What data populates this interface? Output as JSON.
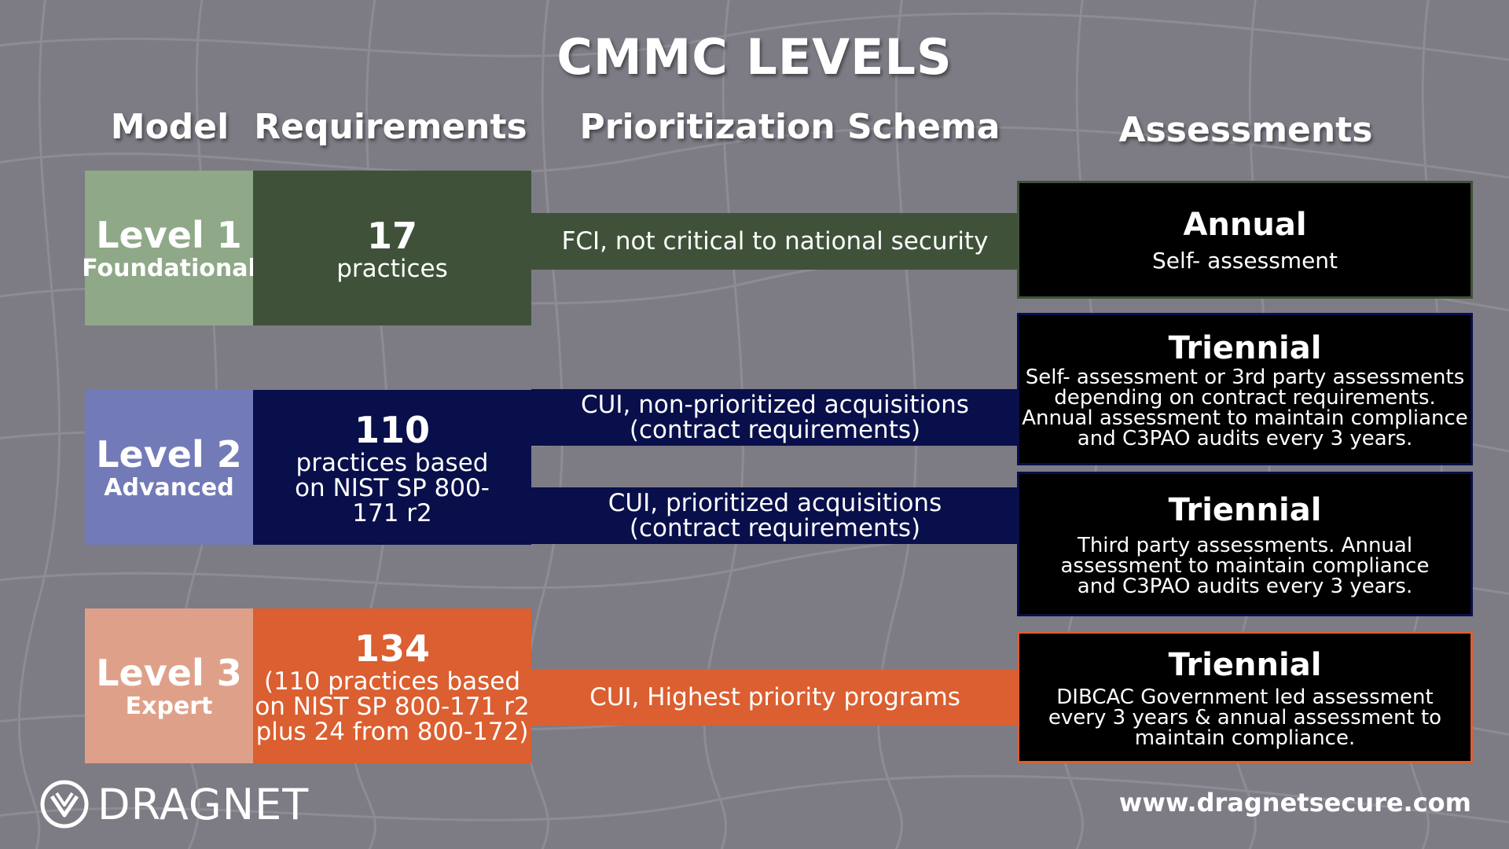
{
  "title": "CMMC LEVELS",
  "columns": {
    "model": "Model",
    "requirements": "Requirements",
    "schema": "Prioritization Schema",
    "assessments": "Assessments"
  },
  "levels": [
    {
      "name": "Level 1",
      "sub": "Foundational",
      "req_num": "17",
      "req_lines": [
        "practices"
      ],
      "model_color": "#8fa888",
      "req_color": "#3f5239"
    },
    {
      "name": "Level 2",
      "sub": "Advanced",
      "req_num": "110",
      "req_lines": [
        "practices based",
        "on NIST SP 800-",
        "171 r2"
      ],
      "model_color": "#737ab8",
      "req_color": "#080f4a"
    },
    {
      "name": "Level 3",
      "sub": "Expert",
      "req_num": "134",
      "req_lines": [
        "(110 practices based",
        "on NIST SP 800-171 r2",
        "plus 24 from 800-172)"
      ],
      "model_color": "#dfa08a",
      "req_color": "#db5f30"
    }
  ],
  "schemas": [
    {
      "lines": [
        "FCI, not critical to national security"
      ],
      "color": "#3f5239"
    },
    {
      "lines": [
        "CUI, non-prioritized acquisitions",
        "(contract requirements)"
      ],
      "color": "#080f4a"
    },
    {
      "lines": [
        "CUI, prioritized acquisitions",
        "(contract requirements)"
      ],
      "color": "#080f4a"
    },
    {
      "lines": [
        "CUI, Highest priority programs"
      ],
      "color": "#db5f30"
    }
  ],
  "assessments": [
    {
      "title": "Annual",
      "lines": [
        "Self- assessment"
      ],
      "border": "#3f5239"
    },
    {
      "title": "Triennial",
      "lines": [
        "Self- assessment or 3rd party assessments",
        "depending on contract requirements.",
        "Annual assessment to maintain compliance",
        "and C3PAO audits every 3 years."
      ],
      "border": "#080f4a"
    },
    {
      "title": "Triennial",
      "lines": [
        "Third party assessments. Annual",
        "assessment to maintain compliance",
        "and C3PAO audits every 3 years."
      ],
      "border": "#080f4a"
    },
    {
      "title": "Triennial",
      "lines": [
        "DIBCAC Government led assessment",
        "every 3 years & annual assessment to",
        "maintain compliance."
      ],
      "border": "#db5f30"
    }
  ],
  "footer": {
    "logo_text": "DRAGNET",
    "url": "www.dragnetsecure.com"
  }
}
